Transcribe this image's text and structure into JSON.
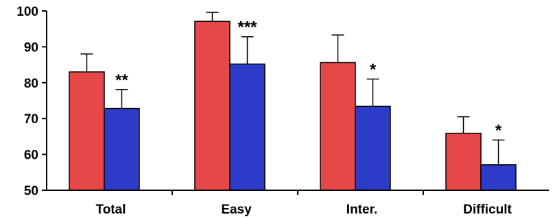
{
  "chart_data": {
    "type": "bar",
    "categories": [
      "Total",
      "Easy",
      "Inter.",
      "Difficult"
    ],
    "series": [
      {
        "color": "#e64848",
        "values": [
          83.0,
          97.1,
          85.6,
          65.9
        ],
        "error": [
          5.0,
          2.5,
          7.7,
          4.6
        ]
      },
      {
        "color": "#2c3cc8",
        "values": [
          72.8,
          85.2,
          73.4,
          57.1
        ],
        "error": [
          5.3,
          7.6,
          7.6,
          6.9
        ]
      }
    ],
    "significance": [
      "**",
      "***",
      "*",
      "*"
    ],
    "ylim": [
      50,
      100
    ],
    "yticks": [
      50,
      60,
      70,
      80,
      90,
      100
    ],
    "xlabel": "",
    "ylabel": "",
    "grid": false
  }
}
